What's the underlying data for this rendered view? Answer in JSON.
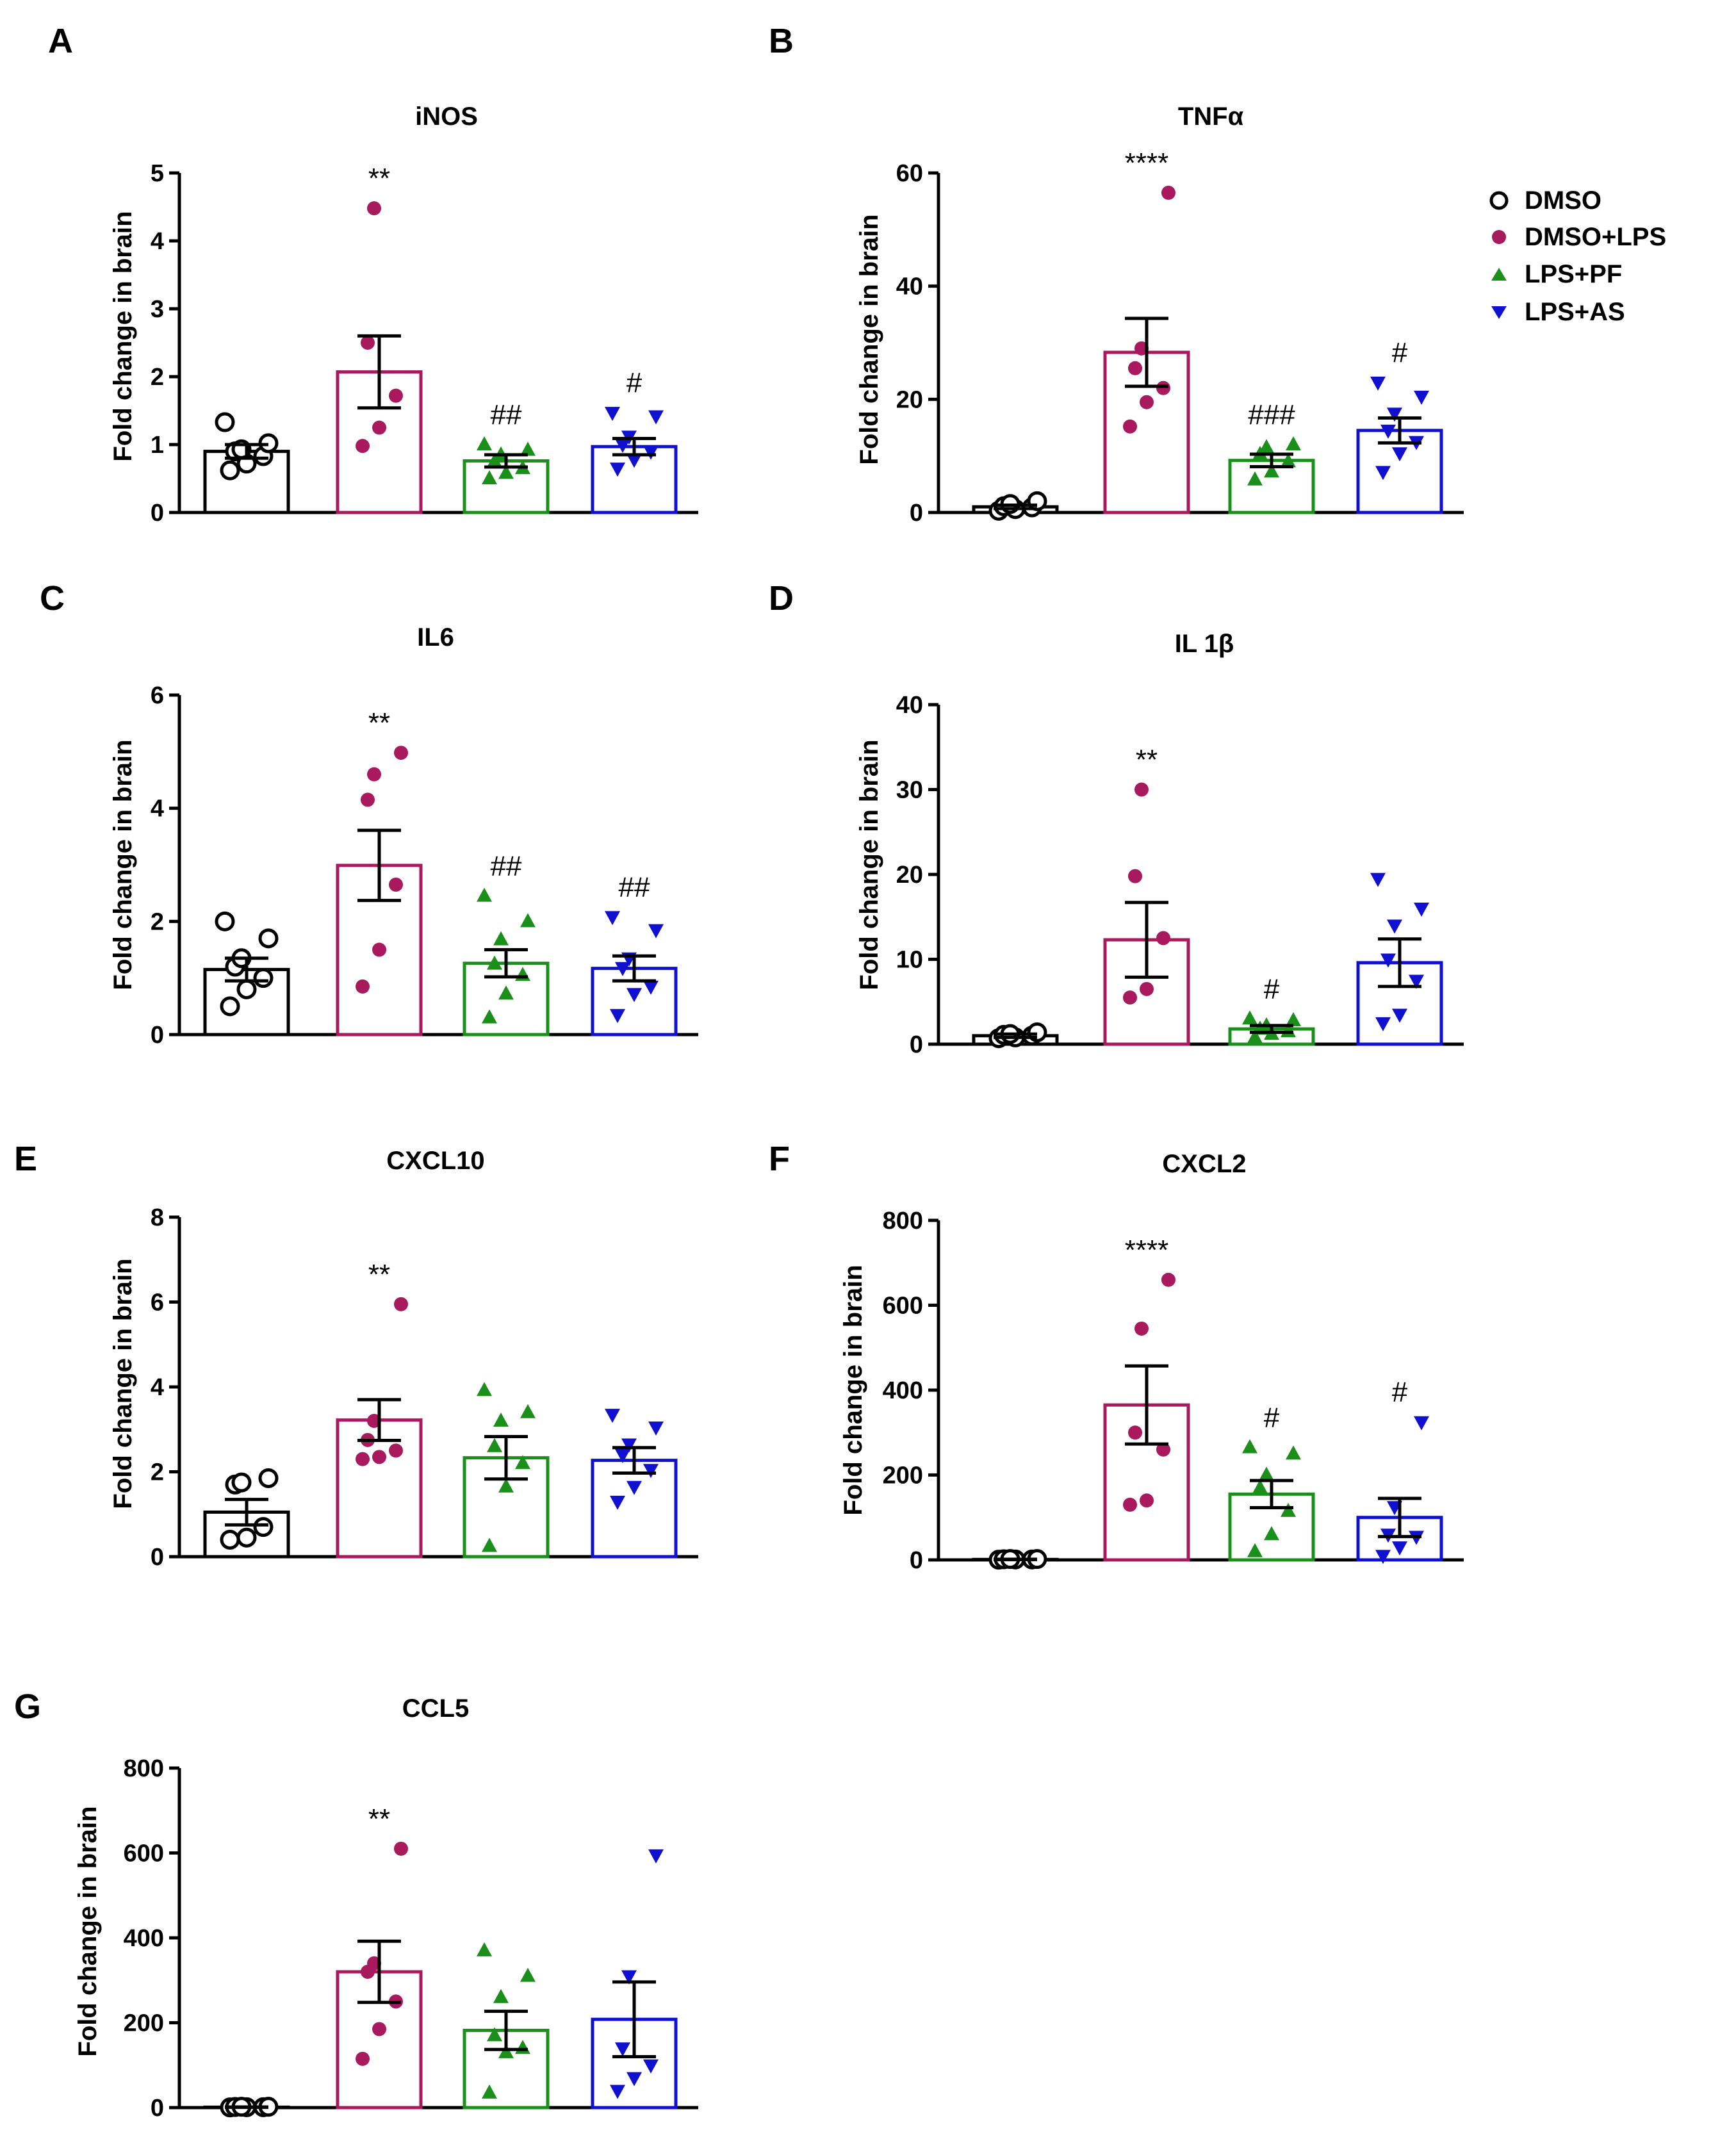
{
  "figure": {
    "ylabel": "Fold change in brain",
    "groups": [
      "DMSO",
      "DMSO+LPS",
      "LPS+PF",
      "LPS+AS"
    ],
    "colors": {
      "DMSO": "#000000",
      "DMSO+LPS": "#a8195e",
      "LPS+PF": "#1a8f1a",
      "LPS+AS": "#1010d0"
    },
    "markers": {
      "DMSO": "open-circle",
      "DMSO+LPS": "filled-circle",
      "LPS+PF": "triangle-up",
      "LPS+AS": "triangle-down"
    }
  },
  "legend": {
    "items": [
      {
        "label": "DMSO"
      },
      {
        "label": "DMSO+LPS"
      },
      {
        "label": "LPS+PF"
      },
      {
        "label": "LPS+AS"
      }
    ]
  },
  "chart_data": [
    {
      "type": "bar",
      "panel": "A",
      "title": "iNOS",
      "ylabel": "Fold change in brain",
      "ylim": [
        0,
        5
      ],
      "yticks": [
        "0",
        "1",
        "2",
        "3",
        "4",
        "5"
      ],
      "categories": [
        "DMSO",
        "DMSO+LPS",
        "LPS+PF",
        "LPS+AS"
      ],
      "values": [
        0.9,
        2.07,
        0.76,
        0.97
      ],
      "sem": [
        0.1,
        0.53,
        0.09,
        0.12
      ],
      "points": [
        [
          0.62,
          0.72,
          0.83,
          0.9,
          0.93,
          1.02,
          1.33
        ],
        [
          0.98,
          1.25,
          1.72,
          2.5,
          4.48
        ],
        [
          0.5,
          0.58,
          0.65,
          0.75,
          0.85,
          0.92,
          1.0
        ],
        [
          0.65,
          0.78,
          0.9,
          1.0,
          1.12,
          1.42,
          1.47
        ]
      ],
      "annotations": [
        "",
        "**",
        "##",
        "#"
      ]
    },
    {
      "type": "bar",
      "panel": "B",
      "title": "TNFα",
      "ylabel": "Fold change in brain",
      "ylim": [
        0,
        60
      ],
      "yticks": [
        "0",
        "20",
        "40",
        "60"
      ],
      "categories": [
        "DMSO",
        "DMSO+LPS",
        "LPS+PF",
        "LPS+AS"
      ],
      "values": [
        1.0,
        28.3,
        9.2,
        14.5
      ],
      "sem": [
        0.3,
        6.0,
        1.1,
        2.2
      ],
      "points": [
        [
          0.3,
          0.6,
          0.9,
          1.1,
          1.5,
          2.0
        ],
        [
          15.2,
          19.5,
          22.0,
          25.5,
          29.0,
          56.5
        ],
        [
          5.8,
          7.2,
          9.0,
          10.3,
          11.5,
          12.0
        ],
        [
          7.2,
          10.5,
          12.5,
          14.5,
          17.5,
          20.5,
          23.0
        ]
      ],
      "annotations": [
        "",
        "****",
        "###",
        "#"
      ]
    },
    {
      "type": "bar",
      "panel": "C",
      "title": "IL6",
      "ylabel": "Fold change in brain",
      "ylim": [
        0,
        6
      ],
      "yticks": [
        "0",
        "2",
        "4",
        "6"
      ],
      "categories": [
        "DMSO",
        "DMSO+LPS",
        "LPS+PF",
        "LPS+AS"
      ],
      "values": [
        1.15,
        2.99,
        1.26,
        1.17
      ],
      "sem": [
        0.2,
        0.62,
        0.24,
        0.22
      ],
      "points": [
        [
          0.5,
          0.8,
          1.0,
          1.2,
          1.35,
          1.7,
          2.0
        ],
        [
          0.85,
          1.5,
          2.65,
          4.15,
          4.6,
          4.98
        ],
        [
          0.3,
          0.72,
          1.05,
          1.25,
          1.68,
          2.0,
          2.45
        ],
        [
          0.35,
          0.72,
          0.85,
          1.18,
          1.35,
          1.85,
          2.08
        ]
      ],
      "annotations": [
        "",
        "**",
        "##",
        "##"
      ]
    },
    {
      "type": "bar",
      "panel": "D",
      "title": "IL 1β",
      "ylabel": "Fold change in brain",
      "ylim": [
        0,
        40
      ],
      "yticks": [
        "0",
        "10",
        "20",
        "30",
        "40"
      ],
      "categories": [
        "DMSO",
        "DMSO+LPS",
        "LPS+PF",
        "LPS+AS"
      ],
      "values": [
        1.0,
        12.3,
        1.8,
        9.6
      ],
      "sem": [
        0.2,
        4.4,
        0.4,
        2.8
      ],
      "points": [
        [
          0.7,
          0.8,
          1.0,
          1.1,
          1.2,
          1.4
        ],
        [
          5.5,
          6.5,
          12.5,
          19.8,
          30.0
        ],
        [
          0.8,
          1.2,
          1.5,
          1.8,
          2.2,
          2.8,
          3.0
        ],
        [
          2.5,
          3.5,
          7.5,
          10.0,
          14.0,
          16.0,
          19.5
        ]
      ],
      "annotations": [
        "",
        "**",
        "#",
        ""
      ]
    },
    {
      "type": "bar",
      "panel": "E",
      "title": "CXCL10",
      "ylabel": "Fold change in brain",
      "ylim": [
        0,
        8
      ],
      "yticks": [
        "0",
        "2",
        "4",
        "6",
        "8"
      ],
      "categories": [
        "DMSO",
        "DMSO+LPS",
        "LPS+PF",
        "LPS+AS"
      ],
      "values": [
        1.05,
        3.22,
        2.33,
        2.27
      ],
      "sem": [
        0.3,
        0.48,
        0.5,
        0.3
      ],
      "points": [
        [
          0.4,
          0.45,
          0.7,
          1.7,
          1.75,
          1.85
        ],
        [
          2.3,
          2.35,
          2.5,
          2.75,
          3.2,
          5.95
        ],
        [
          0.25,
          1.65,
          2.2,
          2.6,
          3.2,
          3.4,
          3.92
        ],
        [
          1.3,
          1.65,
          2.05,
          2.4,
          2.65,
          3.05,
          3.35
        ]
      ],
      "annotations": [
        "",
        "**",
        "",
        ""
      ]
    },
    {
      "type": "bar",
      "panel": "F",
      "title": "CXCL2",
      "ylabel": "Fold change in brain",
      "ylim": [
        0,
        800
      ],
      "yticks": [
        "0",
        "200",
        "400",
        "600",
        "800"
      ],
      "categories": [
        "DMSO",
        "DMSO+LPS",
        "LPS+PF",
        "LPS+AS"
      ],
      "values": [
        1,
        365,
        155,
        100
      ],
      "sem": [
        0.5,
        92,
        32,
        45
      ],
      "points": [
        [
          0.5,
          1,
          1,
          1.5,
          2,
          2
        ],
        [
          130,
          140,
          260,
          300,
          545,
          660
        ],
        [
          20,
          60,
          115,
          170,
          200,
          250,
          265
        ],
        [
          10,
          30,
          55,
          60,
          125,
          325
        ]
      ],
      "annotations": [
        "",
        "****",
        "#",
        "#"
      ]
    },
    {
      "type": "bar",
      "panel": "G",
      "title": "CCL5",
      "ylabel": "Fold change in brain",
      "ylim": [
        0,
        800
      ],
      "yticks": [
        "0",
        "200",
        "400",
        "600",
        "800"
      ],
      "categories": [
        "DMSO",
        "DMSO+LPS",
        "LPS+PF",
        "LPS+AS"
      ],
      "values": [
        1,
        320,
        182,
        208
      ],
      "sem": [
        0.5,
        72,
        45,
        88
      ],
      "points": [
        [
          0.5,
          1,
          1,
          1.5,
          2,
          2
        ],
        [
          115,
          185,
          250,
          320,
          340,
          610
        ],
        [
          35,
          130,
          140,
          170,
          260,
          310,
          370
        ],
        [
          40,
          70,
          100,
          140,
          310,
          595
        ]
      ],
      "annotations": [
        "",
        "**",
        "",
        ""
      ]
    }
  ]
}
